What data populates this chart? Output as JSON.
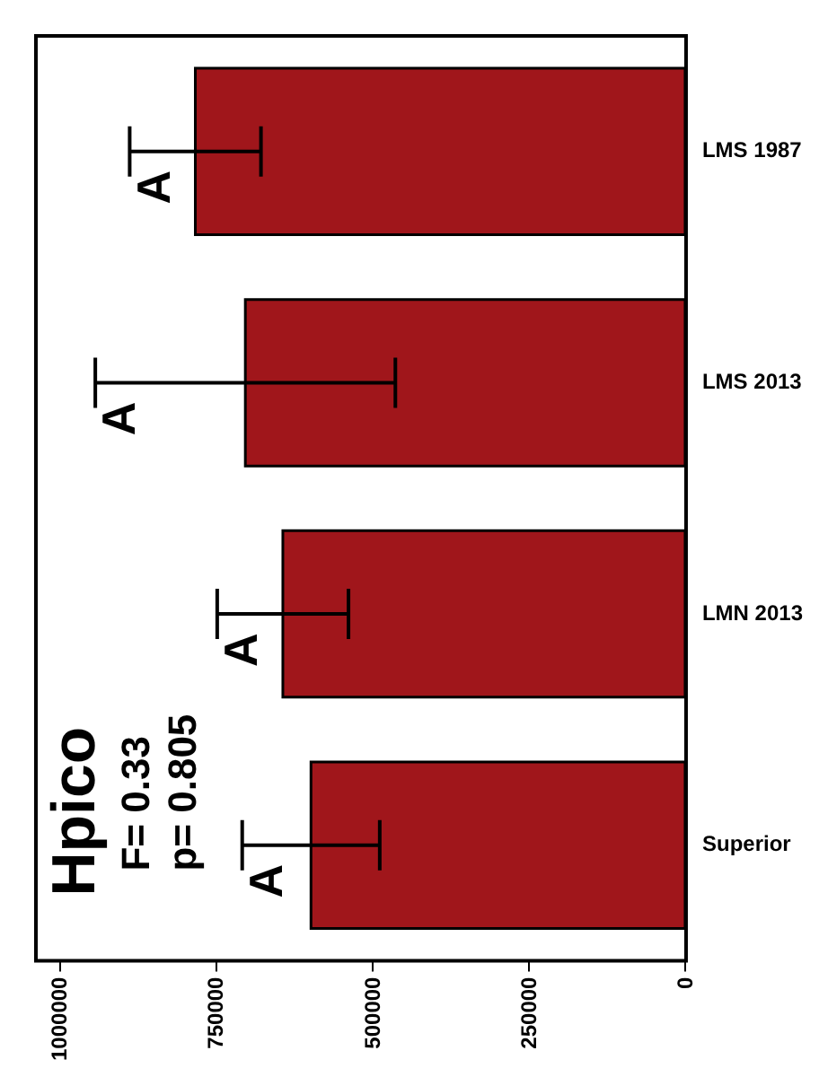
{
  "chart_data": {
    "type": "bar",
    "orientation": "horizontal",
    "categories": [
      "LMS 1987",
      "LMS 2013",
      "LMN 2013",
      "Superior"
    ],
    "values": [
      785000,
      705000,
      645000,
      600000
    ],
    "errors": [
      105000,
      240000,
      105000,
      110000
    ],
    "color": "#a0161b",
    "xlim": [
      1040000,
      0
    ],
    "xticks": [
      0,
      250000,
      500000,
      750000,
      1000000
    ],
    "annotations": [
      "Hpico",
      "F= 0.33",
      "p= 0.805",
      {
        "text": "A",
        "x": 890000,
        "y": "LMS 1987"
      },
      {
        "text": "A",
        "x": 945000,
        "y": "LMS 2013"
      },
      {
        "text": "A",
        "x": 750000,
        "y": "LMN 2013"
      },
      {
        "text": "A",
        "x": 710000,
        "y": "Superior"
      }
    ]
  }
}
